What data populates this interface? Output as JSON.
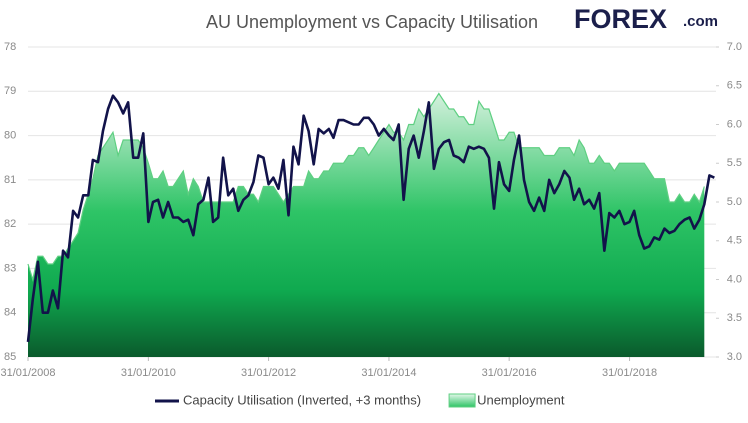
{
  "chart_data": {
    "type": "line",
    "title": "AU Unemployment vs Capacity Utilisation",
    "logo": {
      "name": "FOREX",
      "suffix": ".com"
    },
    "x": [
      "2008-01-31",
      "2008-02-29",
      "2008-03-31",
      "2008-04-30",
      "2008-05-31",
      "2008-06-30",
      "2008-07-31",
      "2008-08-31",
      "2008-09-30",
      "2008-10-31",
      "2008-11-30",
      "2008-12-31",
      "2009-01-31",
      "2009-02-28",
      "2009-03-31",
      "2009-04-30",
      "2009-05-31",
      "2009-06-30",
      "2009-07-31",
      "2009-08-31",
      "2009-09-30",
      "2009-10-31",
      "2009-11-30",
      "2009-12-31",
      "2010-01-31",
      "2010-02-28",
      "2010-03-31",
      "2010-04-30",
      "2010-05-31",
      "2010-06-30",
      "2010-07-31",
      "2010-08-31",
      "2010-09-30",
      "2010-10-31",
      "2010-11-30",
      "2010-12-31",
      "2011-01-31",
      "2011-02-28",
      "2011-03-31",
      "2011-04-30",
      "2011-05-31",
      "2011-06-30",
      "2011-07-31",
      "2011-08-31",
      "2011-09-30",
      "2011-10-31",
      "2011-11-30",
      "2011-12-31",
      "2012-01-31",
      "2012-02-29",
      "2012-03-31",
      "2012-04-30",
      "2012-05-31",
      "2012-06-30",
      "2012-07-31",
      "2012-08-31",
      "2012-09-30",
      "2012-10-31",
      "2012-11-30",
      "2012-12-31",
      "2013-01-31",
      "2013-02-28",
      "2013-03-31",
      "2013-04-30",
      "2013-05-31",
      "2013-06-30",
      "2013-07-31",
      "2013-08-31",
      "2013-09-30",
      "2013-10-31",
      "2013-11-30",
      "2013-12-31",
      "2014-01-31",
      "2014-02-28",
      "2014-03-31",
      "2014-04-30",
      "2014-05-31",
      "2014-06-30",
      "2014-07-31",
      "2014-08-31",
      "2014-09-30",
      "2014-10-31",
      "2014-11-30",
      "2014-12-31",
      "2015-01-31",
      "2015-02-28",
      "2015-03-31",
      "2015-04-30",
      "2015-05-31",
      "2015-06-30",
      "2015-07-31",
      "2015-08-31",
      "2015-09-30",
      "2015-10-31",
      "2015-11-30",
      "2015-12-31",
      "2016-01-31",
      "2016-02-29",
      "2016-03-31",
      "2016-04-30",
      "2016-05-31",
      "2016-06-30",
      "2016-07-31",
      "2016-08-31",
      "2016-09-30",
      "2016-10-31",
      "2016-11-30",
      "2016-12-31",
      "2017-01-31",
      "2017-02-28",
      "2017-03-31",
      "2017-04-30",
      "2017-05-31",
      "2017-06-30",
      "2017-07-31",
      "2017-08-31",
      "2017-09-30",
      "2017-10-31",
      "2017-11-30",
      "2017-12-31",
      "2018-01-31",
      "2018-02-28",
      "2018-03-31",
      "2018-04-30",
      "2018-05-31",
      "2018-06-30",
      "2018-07-31",
      "2018-08-31",
      "2018-09-30",
      "2018-10-31",
      "2018-11-30",
      "2018-12-31",
      "2019-01-31",
      "2019-02-28",
      "2019-03-31",
      "2019-04-30",
      "2019-05-31",
      "2019-06-30"
    ],
    "series": [
      {
        "name": "Unemployment",
        "type": "area",
        "axis": "y2",
        "color": "#5fcf82",
        "values": [
          4.2,
          4.0,
          4.3,
          4.3,
          4.2,
          4.2,
          4.3,
          4.3,
          4.4,
          4.5,
          4.6,
          4.9,
          5.1,
          5.3,
          5.6,
          5.7,
          5.8,
          5.9,
          5.6,
          5.8,
          5.8,
          5.8,
          5.8,
          5.7,
          5.5,
          5.3,
          5.3,
          5.4,
          5.2,
          5.2,
          5.3,
          5.4,
          5.1,
          5.3,
          5.2,
          5.0,
          5.0,
          5.0,
          5.0,
          5.0,
          5.0,
          5.0,
          5.2,
          5.2,
          5.1,
          5.1,
          5.0,
          5.2,
          5.2,
          5.2,
          5.1,
          5.0,
          5.1,
          5.2,
          5.2,
          5.2,
          5.4,
          5.3,
          5.3,
          5.4,
          5.4,
          5.5,
          5.5,
          5.5,
          5.6,
          5.6,
          5.7,
          5.7,
          5.6,
          5.7,
          5.8,
          5.9,
          6.0,
          5.9,
          5.9,
          5.8,
          6.0,
          6.0,
          6.2,
          6.1,
          6.2,
          6.3,
          6.4,
          6.3,
          6.2,
          6.2,
          6.1,
          6.1,
          6.0,
          6.0,
          6.3,
          6.2,
          6.2,
          6.0,
          5.8,
          5.8,
          5.9,
          5.9,
          5.7,
          5.7,
          5.7,
          5.7,
          5.7,
          5.6,
          5.6,
          5.6,
          5.7,
          5.7,
          5.7,
          5.6,
          5.8,
          5.7,
          5.5,
          5.5,
          5.6,
          5.5,
          5.5,
          5.4,
          5.5,
          5.5,
          5.5,
          5.5,
          5.5,
          5.5,
          5.4,
          5.3,
          5.3,
          5.3,
          5.0,
          5.0,
          5.1,
          5.0,
          5.0,
          5.1,
          5.0,
          5.2,
          null,
          null
        ]
      },
      {
        "name": "Capacity Utilisation (Inverted, +3 months)",
        "type": "line",
        "axis": "y",
        "color": "#12134a",
        "values": [
          84.66,
          83.7,
          82.85,
          84.0,
          84.0,
          83.5,
          83.9,
          82.6,
          82.75,
          81.7,
          81.85,
          81.35,
          81.35,
          80.55,
          80.6,
          79.9,
          79.4,
          79.1,
          79.25,
          79.5,
          79.25,
          80.5,
          80.5,
          79.95,
          81.95,
          81.5,
          81.45,
          81.85,
          81.5,
          81.85,
          81.85,
          81.95,
          81.9,
          82.25,
          81.55,
          81.45,
          80.95,
          81.95,
          81.85,
          80.5,
          81.35,
          81.2,
          81.7,
          81.45,
          81.35,
          81.05,
          80.45,
          80.5,
          81.1,
          80.95,
          81.2,
          80.55,
          81.8,
          80.25,
          80.65,
          79.55,
          79.9,
          80.65,
          79.85,
          79.95,
          79.85,
          80.05,
          79.65,
          79.65,
          79.7,
          79.75,
          79.75,
          79.6,
          79.6,
          79.75,
          80.0,
          79.85,
          80.0,
          80.1,
          79.75,
          81.45,
          80.3,
          80.0,
          80.5,
          79.9,
          79.25,
          80.75,
          80.3,
          80.15,
          80.1,
          80.45,
          80.5,
          80.6,
          80.25,
          80.3,
          80.25,
          80.3,
          80.5,
          81.65,
          80.6,
          81.1,
          81.25,
          80.55,
          80.0,
          81.0,
          81.5,
          81.7,
          81.4,
          81.7,
          81.0,
          81.3,
          81.1,
          80.8,
          80.95,
          81.45,
          81.2,
          81.55,
          81.45,
          81.65,
          81.3,
          82.6,
          81.75,
          81.85,
          81.7,
          82.0,
          81.95,
          81.7,
          82.25,
          82.55,
          82.5,
          82.3,
          82.35,
          82.1,
          82.2,
          82.15,
          82.0,
          81.9,
          81.85,
          82.1,
          81.9,
          81.55,
          80.9,
          80.95
        ]
      }
    ],
    "xlim": [
      "2008-01-31",
      "2019-07-10"
    ],
    "xticks": [
      {
        "value": "2008-01-31",
        "label": "31/01/2008"
      },
      {
        "value": "2010-01-31",
        "label": "31/01/2010"
      },
      {
        "value": "2012-01-31",
        "label": "31/01/2012"
      },
      {
        "value": "2014-01-31",
        "label": "31/01/2014"
      },
      {
        "value": "2016-01-31",
        "label": "31/01/2016"
      },
      {
        "value": "2018-01-31",
        "label": "31/01/2018"
      }
    ],
    "ylim": [
      85,
      78
    ],
    "y_inverted": true,
    "yticks": [
      78,
      79,
      80,
      81,
      82,
      83,
      84,
      85
    ],
    "y2lim": [
      3.0,
      7.0
    ],
    "y2ticks": [
      {
        "value": 3.0,
        "label": "3.0"
      },
      {
        "value": 3.5,
        "label": "3.5"
      },
      {
        "value": 4.0,
        "label": "4.0"
      },
      {
        "value": 4.5,
        "label": "4.5"
      },
      {
        "value": 5.0,
        "label": "5.0"
      },
      {
        "value": 5.5,
        "label": "5.5"
      },
      {
        "value": 6.0,
        "label": "6.0"
      },
      {
        "value": 6.5,
        "label": "6.5"
      },
      {
        "value": 7.0,
        "label": "7.0"
      }
    ],
    "grid": true,
    "legend": "bottom"
  }
}
